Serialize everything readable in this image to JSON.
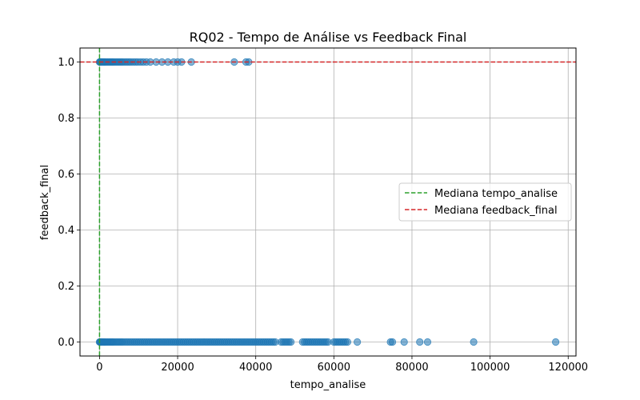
{
  "chart_data": {
    "type": "scatter",
    "title": "RQ02 - Tempo de Análise vs Feedback Final",
    "xlabel": "tempo_analise",
    "ylabel": "feedback_final",
    "xlim": [
      -5000,
      122000
    ],
    "ylim": [
      -0.05,
      1.05
    ],
    "xticks": [
      0,
      20000,
      40000,
      60000,
      80000,
      100000,
      120000
    ],
    "yticks": [
      0.0,
      0.2,
      0.4,
      0.6,
      0.8,
      1.0
    ],
    "xtick_labels": [
      "0",
      "20000",
      "40000",
      "60000",
      "80000",
      "100000",
      "120000"
    ],
    "ytick_labels": [
      "0.0",
      "0.2",
      "0.4",
      "0.6",
      "0.8",
      "1.0"
    ],
    "grid": true,
    "legend_position": "center-right",
    "colors": {
      "points": "#1f77b4",
      "median_x": "#2ca02c",
      "median_y": "#d62728"
    },
    "medians": [
      {
        "label": "Mediana tempo_analise",
        "axis": "x",
        "value": 0
      },
      {
        "label": "Mediana feedback_final",
        "axis": "y",
        "value": 1.0
      }
    ],
    "series": [
      {
        "y": 1.0,
        "x": [
          0,
          100,
          200,
          350,
          500,
          700,
          900,
          1100,
          1300,
          1500,
          1800,
          2100,
          2400,
          2700,
          3000,
          3300,
          3600,
          4000,
          4400,
          4800,
          5200,
          5600,
          6000,
          6500,
          7000,
          7500,
          8000,
          8600,
          9200,
          9800,
          10500,
          11200,
          12000,
          13000,
          14500,
          16000,
          17500,
          19000,
          20000,
          21000,
          23500,
          34500,
          37500,
          38200
        ]
      },
      {
        "y": 0.0,
        "x": [
          0,
          100,
          200,
          350,
          500,
          700,
          900,
          1100,
          1300,
          1500,
          1800,
          2100,
          2400,
          2700,
          3000,
          3300,
          3600,
          4000,
          4400,
          4800,
          5200,
          5600,
          6000,
          6500,
          7000,
          7500,
          8000,
          8500,
          9000,
          9500,
          10000,
          10500,
          11000,
          11500,
          12000,
          12500,
          13000,
          13500,
          14000,
          14500,
          15000,
          15500,
          16000,
          16500,
          17000,
          17500,
          18000,
          18500,
          19000,
          19500,
          20000,
          20500,
          21000,
          21500,
          22000,
          22500,
          23000,
          23500,
          24000,
          24500,
          25000,
          25500,
          26000,
          26500,
          27000,
          27500,
          28000,
          28500,
          29000,
          29500,
          30000,
          30500,
          31000,
          31500,
          32000,
          32500,
          33000,
          33500,
          34000,
          34500,
          35000,
          35500,
          36000,
          36500,
          37000,
          37500,
          38000,
          38500,
          39000,
          39500,
          40000,
          40500,
          41000,
          41500,
          42000,
          42500,
          43000,
          43500,
          44000,
          44500,
          45000,
          46500,
          47000,
          47500,
          48000,
          48500,
          49000,
          52000,
          52500,
          53000,
          53500,
          54000,
          54500,
          55000,
          55500,
          56000,
          56500,
          57000,
          57500,
          58000,
          58500,
          60000,
          60500,
          61000,
          61500,
          62000,
          62500,
          63000,
          63500,
          66000,
          74500,
          75000,
          78000,
          82000,
          84000,
          95800,
          116800
        ]
      }
    ]
  }
}
